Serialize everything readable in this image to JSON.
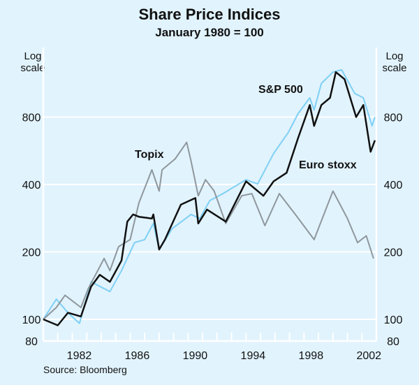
{
  "chart_data": {
    "type": "line",
    "title": "Share Price Indices",
    "subtitle": "January 1980 = 100",
    "ylabel_left": "Log\nscale",
    "ylabel_right": "Log\nscale",
    "yscale": "log",
    "ylim": [
      80,
      1600
    ],
    "yticks": [
      80,
      100,
      200,
      400,
      800
    ],
    "xlim": [
      1980,
      2003
    ],
    "xticks": [
      "1982",
      "1986",
      "1990",
      "1994",
      "1998",
      "2002"
    ],
    "grid": true,
    "source": "Source: Bloomberg",
    "series": [
      {
        "name": "S&P 500",
        "color": "#7fd0f5",
        "x": [
          1980.0,
          1980.9,
          1981.7,
          1982.5,
          1983.3,
          1984.6,
          1985.4,
          1986.3,
          1987.0,
          1987.6,
          1988.0,
          1988.9,
          1990.2,
          1990.8,
          1991.5,
          1992.4,
          1994.0,
          1994.8,
          1995.9,
          1996.9,
          1997.6,
          1998.4,
          1998.7,
          1999.2,
          2000.0,
          2000.6,
          2001.5,
          2002.1,
          2002.7,
          2002.9
        ],
        "y": [
          100,
          123,
          107,
          96,
          147,
          133,
          165,
          220,
          227,
          268,
          205,
          254,
          294,
          282,
          339,
          364,
          420,
          402,
          550,
          680,
          830,
          975,
          860,
          1130,
          1270,
          1300,
          1020,
          975,
          730,
          800
        ]
      },
      {
        "name": "Euro stoxx",
        "color": "#111111",
        "x": [
          1980.0,
          1981.0,
          1981.7,
          1982.6,
          1983.3,
          1983.9,
          1984.6,
          1985.4,
          1985.8,
          1986.2,
          1986.6,
          1987.5,
          1987.6,
          1988.0,
          1988.4,
          1989.5,
          1990.5,
          1990.7,
          1991.3,
          1992.6,
          1993.7,
          1994.0,
          1995.2,
          1995.9,
          1996.8,
          1997.6,
          1998.4,
          1998.7,
          1999.2,
          1999.8,
          2000.2,
          2000.8,
          2001.6,
          2002.1,
          2002.6,
          2002.9
        ],
        "y": [
          100,
          94,
          107,
          103,
          140,
          158,
          147,
          183,
          273,
          294,
          287,
          282,
          294,
          205,
          227,
          325,
          348,
          268,
          309,
          273,
          378,
          413,
          356,
          413,
          451,
          647,
          905,
          730,
          905,
          975,
          1270,
          1180,
          800,
          905,
          560,
          630
        ]
      },
      {
        "name": "Topix",
        "color": "#8e979c",
        "x": [
          1980.0,
          1980.9,
          1981.5,
          1982.6,
          1983.1,
          1984.2,
          1984.6,
          1985.2,
          1986.0,
          1986.6,
          1987.5,
          1988.0,
          1988.2,
          1989.1,
          1989.9,
          1990.2,
          1990.7,
          1991.2,
          1991.8,
          1992.6,
          1993.7,
          1994.4,
          1995.3,
          1996.3,
          1997.4,
          1998.7,
          2000.0,
          2001.0,
          2001.7,
          2002.3,
          2002.8
        ],
        "y": [
          100,
          113,
          128,
          113,
          137,
          187,
          165,
          211,
          227,
          331,
          465,
          374,
          465,
          520,
          617,
          510,
          356,
          420,
          374,
          268,
          356,
          364,
          262,
          364,
          294,
          227,
          374,
          282,
          220,
          236,
          187
        ]
      }
    ]
  }
}
